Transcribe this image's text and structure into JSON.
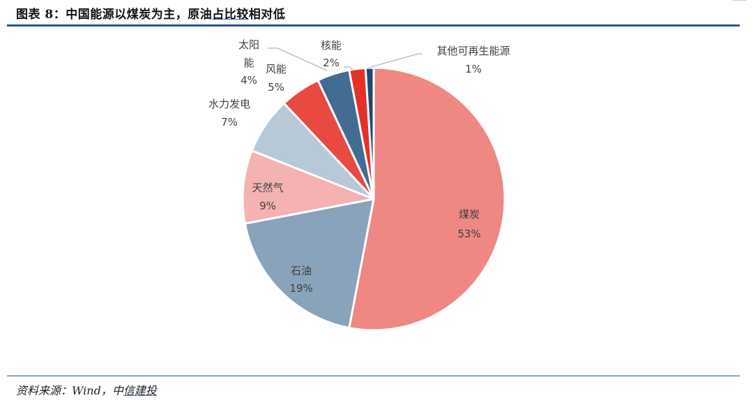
{
  "header": {
    "title_prefix": "图表 8：中国能源以煤炭为主，原油",
    "title_underlined": "占比较",
    "title_suffix": "相对低"
  },
  "footer": {
    "source_prefix": "资料来源：Wind，中",
    "source_underlined": "信建投"
  },
  "chart_data": {
    "type": "pie",
    "title": "中国能源以煤炭为主，原油占比较相对低",
    "start_angle": "12 o'clock, clockwise",
    "slices": [
      {
        "name": "煤炭",
        "value": 53,
        "label": "53%",
        "color": "#ef8783"
      },
      {
        "name": "石油",
        "value": 19,
        "label": "19%",
        "color": "#89a4ba"
      },
      {
        "name": "天然气",
        "value": 9,
        "label": "9%",
        "color": "#f4b2b2"
      },
      {
        "name": "水力发电",
        "value": 7,
        "label": "7%",
        "color": "#b7c8d6"
      },
      {
        "name": "风能",
        "value": 5,
        "label": "5%",
        "color": "#e84a42"
      },
      {
        "name": "太阳能",
        "value": 4,
        "label": "4%",
        "color": "#436c93"
      },
      {
        "name": "核能",
        "value": 2,
        "label": "2%",
        "color": "#e5312a"
      },
      {
        "name": "其他可再生能源",
        "value": 1,
        "label": "1%",
        "color": "#1f4873"
      }
    ],
    "legend": "none (data labels on/near slices)",
    "source": "Wind，中信建投"
  },
  "labels": {
    "coal": {
      "name": "煤炭",
      "pct": "53%"
    },
    "oil": {
      "name": "石油",
      "pct": "19%"
    },
    "gas": {
      "name": "天然气",
      "pct": "9%"
    },
    "hydro": {
      "name": "水力发电",
      "pct": "7%"
    },
    "wind": {
      "name": "风能",
      "pct": "5%"
    },
    "solar": {
      "name_line1": "太阳",
      "name_line2": "能",
      "pct": "4%"
    },
    "nuclear": {
      "name": "核能",
      "pct": "2%"
    },
    "other": {
      "name": "其他可再生能源",
      "pct": "1%"
    }
  }
}
